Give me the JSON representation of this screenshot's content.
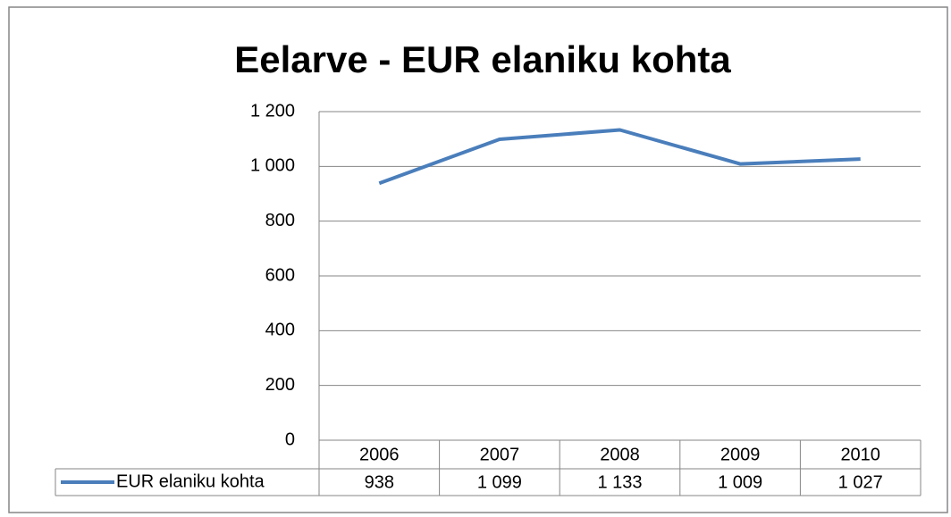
{
  "chart_data": {
    "type": "line",
    "title": "Eelarve - EUR elaniku kohta",
    "categories": [
      "2006",
      "2007",
      "2008",
      "2009",
      "2010"
    ],
    "series": [
      {
        "name": "EUR elaniku kohta",
        "color": "#4a7ebb",
        "values": [
          938,
          1099,
          1133,
          1009,
          1027
        ],
        "value_labels": [
          "938",
          "1 099",
          "1 133",
          "1 009",
          "1 027"
        ]
      }
    ],
    "ylim": [
      0,
      1200
    ],
    "yticks": [
      0,
      200,
      400,
      600,
      800,
      {
        "value": 1000,
        "label": "1 000"
      },
      {
        "value": 1200,
        "label": "1 200"
      }
    ],
    "grid": true
  }
}
